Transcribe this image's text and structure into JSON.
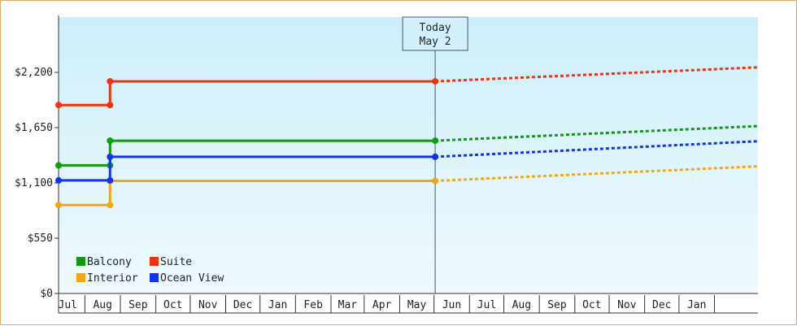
{
  "chart_data": {
    "type": "line",
    "title": "",
    "xlabel": "",
    "ylabel": "",
    "ylim": [
      0,
      2750
    ],
    "y_ticks": [
      {
        "value": 0,
        "label": "$0"
      },
      {
        "value": 550,
        "label": "$550"
      },
      {
        "value": 1100,
        "label": "$1,100"
      },
      {
        "value": 1650,
        "label": "$1,650"
      },
      {
        "value": 2200,
        "label": "$2,200"
      }
    ],
    "x_months": [
      "Jul",
      "Aug",
      "Sep",
      "Oct",
      "Nov",
      "Dec",
      "Jan",
      "Feb",
      "Mar",
      "Apr",
      "May",
      "Jun",
      "Jul",
      "Aug",
      "Sep",
      "Oct",
      "Nov",
      "Dec",
      "Jan"
    ],
    "x_range": [
      "2023-06-08",
      "2025-02-08"
    ],
    "today": {
      "date": "2024-05-02",
      "label_line1": "Today",
      "label_line2": "May 2"
    },
    "legend_position": "bottom-left",
    "background_gradient": [
      "#cdeffa",
      "#eef9fd"
    ],
    "series": [
      {
        "name": "Balcony",
        "color": "#119911",
        "history": [
          [
            "2023-06-08",
            1275
          ],
          [
            "2023-07-23",
            1275
          ],
          [
            "2023-07-23",
            1520
          ],
          [
            "2024-05-02",
            1520
          ]
        ],
        "forecast": [
          [
            "2024-05-02",
            1520
          ],
          [
            "2025-02-08",
            1665
          ]
        ]
      },
      {
        "name": "Suite",
        "color": "#ee3311",
        "history": [
          [
            "2023-06-08",
            1875
          ],
          [
            "2023-07-23",
            1875
          ],
          [
            "2023-07-23",
            2110
          ],
          [
            "2024-05-02",
            2110
          ]
        ],
        "forecast": [
          [
            "2024-05-02",
            2110
          ],
          [
            "2025-02-08",
            2250
          ]
        ]
      },
      {
        "name": "Interior",
        "color": "#f5a511",
        "history": [
          [
            "2023-06-08",
            880
          ],
          [
            "2023-07-23",
            880
          ],
          [
            "2023-07-23",
            1120
          ],
          [
            "2024-05-02",
            1120
          ]
        ],
        "forecast": [
          [
            "2024-05-02",
            1120
          ],
          [
            "2025-02-08",
            1265
          ]
        ]
      },
      {
        "name": "Ocean View",
        "color": "#1133ee",
        "history": [
          [
            "2023-06-08",
            1125
          ],
          [
            "2023-07-23",
            1125
          ],
          [
            "2023-07-23",
            1360
          ],
          [
            "2024-05-02",
            1360
          ]
        ],
        "forecast": [
          [
            "2024-05-02",
            1360
          ],
          [
            "2025-02-08",
            1515
          ]
        ]
      }
    ]
  }
}
